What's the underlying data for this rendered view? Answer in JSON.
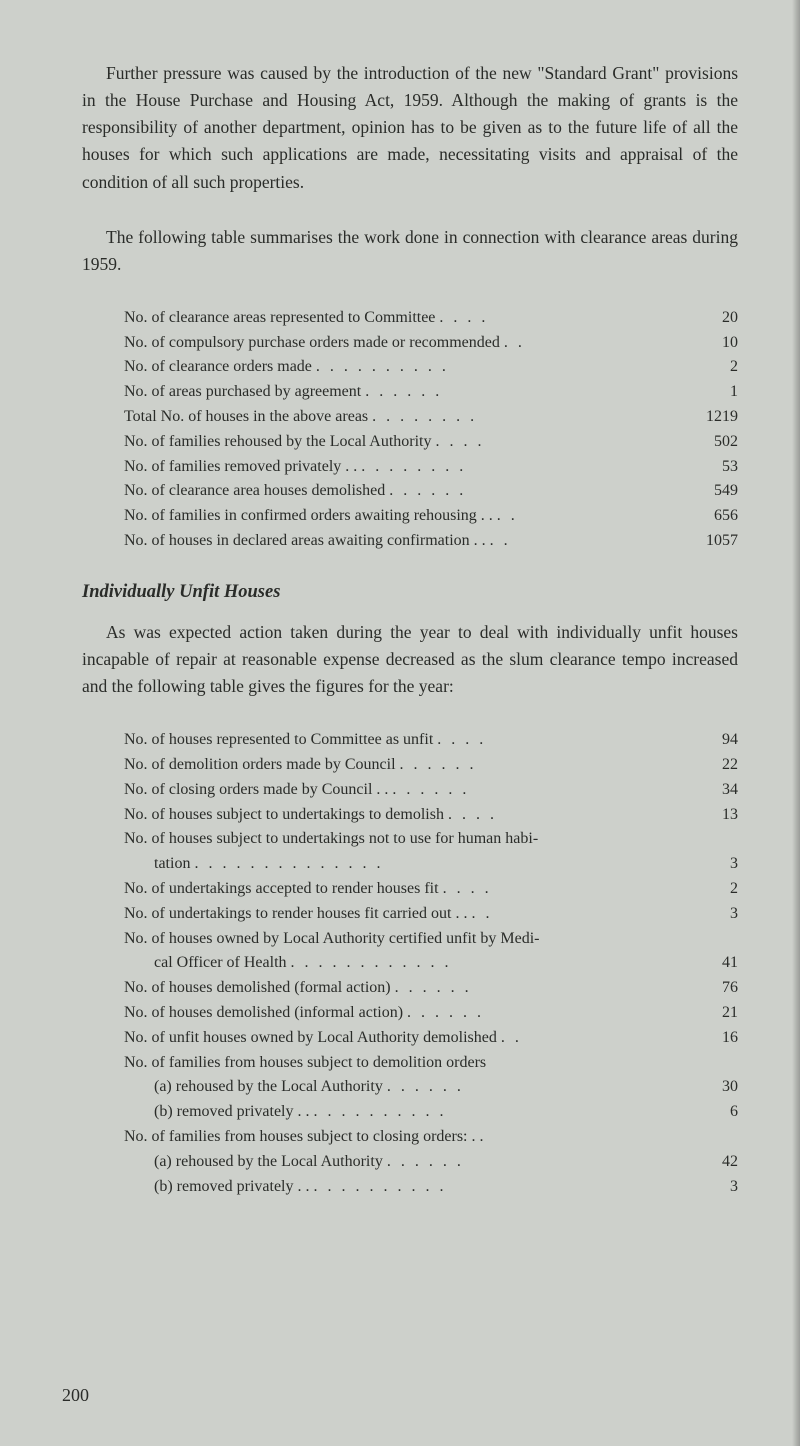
{
  "paragraphs": {
    "p1": "Further pressure was caused by the introduction of the new \"Standard Grant\" provisions in the House Purchase and Housing Act, 1959. Although the making of grants is the responsibility of another department, opinion has to be given as to the future life of all the houses for which such applications are made, necessitating visits and appraisal of the condition of all such properties.",
    "p2": "The following table summarises the work done in connection with clearance areas during 1959.",
    "p3": "As was expected action taken during the year to deal with individually unfit houses incapable of repair at reasonable expense decreased as the slum clearance tempo increased and the following table gives the figures for the year:"
  },
  "section_heading": "Individually Unfit Houses",
  "table1": [
    {
      "label": "No. of clearance areas represented to Committee",
      "dots": ". .    . .",
      "value": "20"
    },
    {
      "label": "No. of compulsory purchase orders made or recommended",
      "dots": ". .",
      "value": "10"
    },
    {
      "label": "No. of clearance orders made",
      "dots": ". .    . .    . .    . .    . .",
      "value": "2"
    },
    {
      "label": "No. of areas purchased by agreement",
      "dots": ". .    . .    . .",
      "value": "1"
    },
    {
      "label": "Total No. of houses in the above areas",
      "dots": ". .    . .    . .    . .",
      "value": "1219"
    },
    {
      "label": "No. of families rehoused by the Local Authority",
      "dots": ". .    . .",
      "value": "502"
    },
    {
      "label": "No. of families removed privately . .",
      "dots": ". .    . .    . .    . .",
      "value": "53"
    },
    {
      "label": "No. of clearance area houses demolished",
      "dots": ". .    . .    . .",
      "value": "549"
    },
    {
      "label": "No. of families in confirmed orders awaiting rehousing . .",
      "dots": ". .",
      "value": "656"
    },
    {
      "label": "No. of houses in declared areas awaiting confirmation . .",
      "dots": ". .",
      "value": "1057"
    }
  ],
  "table2": [
    {
      "label": "No. of houses represented to Committee as unfit",
      "dots": ". .    . .",
      "value": "94",
      "indent": false
    },
    {
      "label": "No. of demolition orders made by Council",
      "dots": ". .    . .    . .",
      "value": "22",
      "indent": false
    },
    {
      "label": "No. of closing orders made by Council   . .",
      "dots": ". .    . .    . .",
      "value": "34",
      "indent": false
    },
    {
      "label": "No. of houses subject to undertakings to demolish",
      "dots": ". .    . .",
      "value": "13",
      "indent": false
    },
    {
      "label": "No. of houses subject to undertakings not to use for human habi-",
      "dots": "",
      "value": "",
      "indent": false
    },
    {
      "label": "tation",
      "dots": ". .    . .    . .    . .    . .    . .    . .",
      "value": "3",
      "indent": true
    },
    {
      "label": "No. of undertakings accepted to render houses fit",
      "dots": ". .    . .",
      "value": "2",
      "indent": false
    },
    {
      "label": "No. of undertakings to render houses fit carried out    . .",
      "dots": ". .",
      "value": "3",
      "indent": false
    },
    {
      "label": "No. of houses owned by Local Authority certified unfit by Medi-",
      "dots": "",
      "value": "",
      "indent": false
    },
    {
      "label": "cal Officer of Health",
      "dots": ". .    . .    . .    . .    . .    . .",
      "value": "41",
      "indent": true
    },
    {
      "label": "No. of houses demolished (formal action)",
      "dots": ". .    . .    . .",
      "value": "76",
      "indent": false
    },
    {
      "label": "No. of houses demolished (informal action)",
      "dots": ". .    . .    . .",
      "value": "21",
      "indent": false
    },
    {
      "label": "No. of unfit houses owned by Local Authority demolished",
      "dots": ". .",
      "value": "16",
      "indent": false
    },
    {
      "label": "No. of families from houses subject to demolition orders",
      "dots": "",
      "value": "",
      "indent": false
    },
    {
      "label": "(a)   rehoused by the Local Authority",
      "dots": ". .    . .    . .",
      "value": "30",
      "indent": true
    },
    {
      "label": "(b)   removed privately  . .",
      "dots": ". .    . .    . .    . .    . .",
      "value": "6",
      "indent": true
    },
    {
      "label": "No. of families from houses subject to closing orders: . .",
      "dots": "",
      "value": "",
      "indent": false
    },
    {
      "label": "(a)   rehoused by the Local Authority",
      "dots": ". .    . .    . .",
      "value": "42",
      "indent": true
    },
    {
      "label": "(b)   removed privately  . .",
      "dots": ". .    . .    . .    . .    . .",
      "value": "3",
      "indent": true
    }
  ],
  "page_number": "200",
  "styles": {
    "background_color": "#cdd0cb",
    "text_color": "#2a2c29",
    "body_fontsize": 17.5,
    "table_fontsize": 16,
    "heading_fontsize": 18.5
  }
}
